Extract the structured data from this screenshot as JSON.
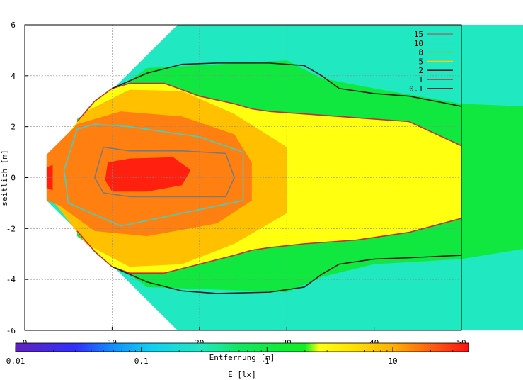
{
  "chart_data": {
    "type": "heatmap",
    "xlabel": "Entfernung [m]",
    "ylabel": "seitlich [m]",
    "xlim": [
      0,
      50
    ],
    "ylim": [
      -6,
      6
    ],
    "x_ticks": [
      "0",
      "10",
      "20",
      "30",
      "40",
      "50"
    ],
    "y_ticks": [
      "-6",
      "-4",
      "-2",
      "0",
      "2",
      "4",
      "6"
    ],
    "grid": true,
    "legend_position": "top-right",
    "legend": [
      {
        "label": "15",
        "color": "#7a7a7a"
      },
      {
        "label": "10",
        "color": "#40d0c8"
      },
      {
        "label": "8",
        "color": "#d4a000"
      },
      {
        "label": "5",
        "color": "#ffcc00"
      },
      {
        "label": "2",
        "color": "#101010"
      },
      {
        "label": "1",
        "color": "#c03030"
      },
      {
        "label": "0.1",
        "color": "#202020"
      }
    ],
    "colorbar": {
      "label": "E [lx]",
      "scale": "log",
      "range": [
        0.01,
        40
      ],
      "tick_labels": [
        "0.01",
        "0.1",
        "1",
        "10"
      ],
      "tick_values": [
        0.01,
        0.1,
        1,
        10
      ]
    },
    "contours": [
      {
        "level": 15,
        "points": [
          [
            8,
            0
          ],
          [
            9,
            1.2
          ],
          [
            12,
            1.05
          ],
          [
            18,
            1.05
          ],
          [
            23,
            0.95
          ],
          [
            24,
            0
          ],
          [
            23,
            -0.75
          ],
          [
            18,
            -0.75
          ],
          [
            12,
            -0.75
          ],
          [
            9,
            -0.6
          ],
          [
            8,
            0
          ]
        ]
      },
      {
        "level": 10,
        "points": [
          [
            4.5,
            0.3
          ],
          [
            6,
            1.9
          ],
          [
            8,
            2.1
          ],
          [
            12,
            2.0
          ],
          [
            20,
            1.6
          ],
          [
            25,
            1.0
          ],
          [
            25,
            -0.9
          ],
          [
            18,
            -1.4
          ],
          [
            11,
            -1.9
          ],
          [
            7,
            -1.3
          ],
          [
            5,
            -1.0
          ],
          [
            4.5,
            0.3
          ]
        ]
      },
      {
        "level": 1,
        "upper": [
          [
            6,
            2.2
          ],
          [
            8,
            3.0
          ],
          [
            10,
            3.5
          ],
          [
            12,
            3.7
          ],
          [
            16,
            3.7
          ],
          [
            20,
            3.2
          ],
          [
            24,
            2.9
          ],
          [
            26,
            2.7
          ],
          [
            28,
            2.6
          ],
          [
            32,
            2.5
          ],
          [
            38,
            2.35
          ],
          [
            44,
            2.2
          ],
          [
            50,
            1.25
          ]
        ],
        "lower": [
          [
            6,
            -2.1
          ],
          [
            8,
            -2.9
          ],
          [
            10,
            -3.5
          ],
          [
            12,
            -3.75
          ],
          [
            16,
            -3.75
          ],
          [
            20,
            -3.4
          ],
          [
            24,
            -3.05
          ],
          [
            26,
            -2.85
          ],
          [
            28,
            -2.75
          ],
          [
            32,
            -2.6
          ],
          [
            38,
            -2.45
          ],
          [
            44,
            -2.15
          ],
          [
            50,
            -1.6
          ]
        ]
      },
      {
        "level": 0.1,
        "upper": [
          [
            10,
            3.5
          ],
          [
            14,
            4.1
          ],
          [
            18,
            4.45
          ],
          [
            22,
            4.5
          ],
          [
            28,
            4.5
          ],
          [
            32,
            4.4
          ],
          [
            34,
            4.0
          ],
          [
            36,
            3.5
          ],
          [
            40,
            3.3
          ],
          [
            44,
            3.2
          ],
          [
            50,
            2.8
          ]
        ],
        "lower": [
          [
            10,
            -3.5
          ],
          [
            14,
            -4.1
          ],
          [
            18,
            -4.45
          ],
          [
            22,
            -4.55
          ],
          [
            28,
            -4.5
          ],
          [
            32,
            -4.3
          ],
          [
            34,
            -3.8
          ],
          [
            36,
            -3.4
          ],
          [
            40,
            -3.2
          ],
          [
            44,
            -3.15
          ],
          [
            50,
            -3.05
          ]
        ]
      }
    ],
    "field_regions": [
      {
        "min_lx": 0.1,
        "max_lx": 0.5,
        "color": "#20e8c0"
      },
      {
        "min_lx": 0.5,
        "max_lx": 2,
        "color": "#10e840"
      },
      {
        "min_lx": 2,
        "max_lx": 5,
        "color": "#ffff10"
      },
      {
        "min_lx": 5,
        "max_lx": 10,
        "color": "#ffc000"
      },
      {
        "min_lx": 10,
        "max_lx": 20,
        "color": "#ff8010"
      },
      {
        "min_lx": 20,
        "max_lx": 40,
        "color": "#ff2010"
      }
    ]
  }
}
